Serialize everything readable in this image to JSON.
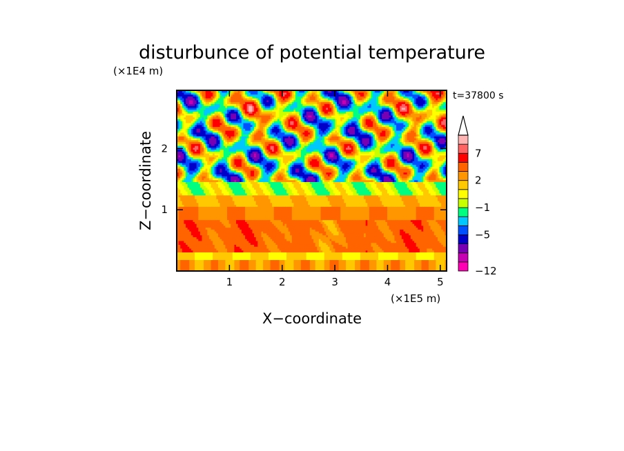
{
  "chart_data": {
    "type": "heatmap",
    "title": "disturbunce of potential temperature",
    "xlabel": "X−coordinate",
    "ylabel": "Z−coordinate",
    "x_unit": "(×1E5 m)",
    "y_unit": "(×1E4 m)",
    "time_label": "t=37800 s",
    "x_range": [
      0,
      5.12
    ],
    "y_range": [
      0,
      2.95
    ],
    "x_ticks": [
      "1",
      "2",
      "3",
      "4",
      "5"
    ],
    "y_ticks": [
      "1",
      "2"
    ],
    "grid": false,
    "colorbar": {
      "placement": "right",
      "tick_labels": [
        "7",
        "2",
        "−1",
        "−5",
        "−12"
      ],
      "colors": [
        "#ff00b4",
        "#c800b4",
        "#7800b4",
        "#0000c8",
        "#0050ff",
        "#00c8ff",
        "#00ff80",
        "#c8ff00",
        "#ffff00",
        "#ffc800",
        "#ff9600",
        "#ff6400",
        "#ff0000",
        "#ff6464",
        "#ffb4b4",
        "#ffffff"
      ]
    }
  }
}
